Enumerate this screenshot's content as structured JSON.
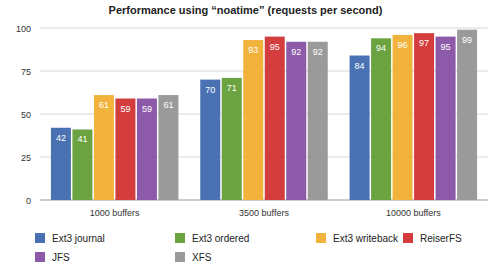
{
  "chart_data": {
    "type": "bar",
    "title": "Performance using “noatime” (requests per second)",
    "categories": [
      "1000 buffers",
      "3500 buffers",
      "10000 buffers"
    ],
    "series": [
      {
        "name": "Ext3 journal",
        "color": "#4a72b3",
        "values": [
          42,
          70,
          84
        ]
      },
      {
        "name": "Ext3 ordered",
        "color": "#6aa33f",
        "values": [
          41,
          71,
          94
        ]
      },
      {
        "name": "Ext3 writeback",
        "color": "#f2b33d",
        "values": [
          61,
          93,
          96
        ]
      },
      {
        "name": "ReiserFS",
        "color": "#d33d3d",
        "values": [
          59,
          95,
          97
        ]
      },
      {
        "name": "JFS",
        "color": "#8c5aa9",
        "values": [
          59,
          92,
          95
        ]
      },
      {
        "name": "XFS",
        "color": "#9a9a9a",
        "values": [
          61,
          92,
          99
        ]
      }
    ],
    "ylim": [
      0,
      100
    ],
    "yticks": [
      0,
      25,
      50,
      75,
      100
    ],
    "grid": true,
    "data_labels": true,
    "legend": "bottom"
  }
}
